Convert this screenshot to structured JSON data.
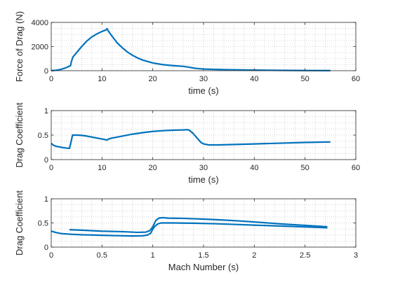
{
  "chart_data": [
    {
      "type": "line",
      "xlabel": "time (s)",
      "ylabel": "Force of Drag (N)",
      "xlim": [
        0,
        60
      ],
      "ylim": [
        0,
        4000
      ],
      "xticks": [
        0,
        10,
        20,
        30,
        40,
        50,
        60
      ],
      "yticks": [
        0,
        2000,
        4000
      ],
      "grid": "minor-dotted",
      "color": "#0072BD",
      "series": [
        {
          "x": [
            0,
            1,
            2,
            3,
            3.8,
            4.0,
            4.3,
            5,
            6,
            7,
            8,
            9,
            10,
            10.8,
            11.0,
            11.3,
            12,
            13,
            14,
            15,
            16,
            17,
            18,
            20,
            22,
            24,
            26,
            27,
            28,
            29,
            30,
            32,
            35,
            40,
            45,
            50,
            55
          ],
          "y": [
            0,
            40,
            120,
            260,
            420,
            800,
            1150,
            1500,
            2000,
            2450,
            2800,
            3050,
            3250,
            3380,
            3480,
            3250,
            2850,
            2300,
            1900,
            1550,
            1280,
            1060,
            880,
            640,
            500,
            420,
            360,
            300,
            220,
            170,
            140,
            110,
            80,
            50,
            30,
            15,
            8
          ]
        }
      ]
    },
    {
      "type": "line",
      "xlabel": "time (s)",
      "ylabel": "Drag Coefficient",
      "xlim": [
        0,
        60
      ],
      "ylim": [
        0,
        1
      ],
      "xticks": [
        0,
        10,
        20,
        30,
        40,
        50,
        60
      ],
      "yticks": [
        0,
        0.5,
        1
      ],
      "grid": "minor-dotted",
      "color": "#0072BD",
      "series": [
        {
          "x": [
            0,
            0.5,
            1,
            2,
            3,
            3.6,
            3.9,
            4.2,
            5,
            6,
            7,
            8,
            9,
            10,
            10.8,
            11.0,
            11.3,
            12,
            14,
            16,
            18,
            20,
            22,
            24,
            26,
            26.8,
            27.2,
            28,
            28.8,
            29.5,
            30,
            31,
            33,
            35,
            40,
            45,
            50,
            55
          ],
          "y": [
            0.33,
            0.29,
            0.27,
            0.25,
            0.235,
            0.23,
            0.36,
            0.5,
            0.5,
            0.495,
            0.48,
            0.46,
            0.44,
            0.42,
            0.405,
            0.4,
            0.42,
            0.44,
            0.48,
            0.52,
            0.55,
            0.575,
            0.59,
            0.6,
            0.605,
            0.61,
            0.6,
            0.53,
            0.43,
            0.35,
            0.32,
            0.3,
            0.3,
            0.305,
            0.32,
            0.335,
            0.35,
            0.36
          ]
        }
      ]
    },
    {
      "type": "line",
      "xlabel": "Mach Number (s)",
      "ylabel": "Drag Coefficient",
      "xlim": [
        0,
        3
      ],
      "ylim": [
        0,
        1
      ],
      "xticks": [
        0,
        0.5,
        1,
        1.5,
        2,
        2.5,
        3
      ],
      "yticks": [
        0,
        0.5,
        1
      ],
      "grid": "minor-dotted",
      "color": "#0072BD",
      "series": [
        {
          "x": [
            0,
            0.05,
            0.1,
            0.2,
            0.3,
            0.5,
            0.7,
            0.8,
            0.9,
            0.95,
            0.98,
            1.0,
            1.02,
            1.05,
            1.08,
            1.1,
            1.2,
            1.4,
            1.6,
            1.8,
            2.0,
            2.2,
            2.4,
            2.6,
            2.72
          ],
          "y": [
            0.33,
            0.3,
            0.28,
            0.265,
            0.255,
            0.245,
            0.235,
            0.23,
            0.235,
            0.25,
            0.29,
            0.37,
            0.43,
            0.48,
            0.5,
            0.5,
            0.5,
            0.495,
            0.485,
            0.47,
            0.455,
            0.44,
            0.425,
            0.41,
            0.4
          ]
        },
        {
          "x": [
            0.18,
            0.3,
            0.5,
            0.7,
            0.85,
            0.93,
            0.97,
            1.0,
            1.03,
            1.06,
            1.08,
            1.1,
            1.15,
            1.3,
            1.5,
            1.7,
            1.9,
            2.1,
            2.3,
            2.5,
            2.72
          ],
          "y": [
            0.36,
            0.35,
            0.33,
            0.32,
            0.305,
            0.31,
            0.34,
            0.42,
            0.55,
            0.6,
            0.605,
            0.61,
            0.6,
            0.595,
            0.58,
            0.56,
            0.535,
            0.505,
            0.475,
            0.45,
            0.42
          ]
        }
      ]
    }
  ]
}
